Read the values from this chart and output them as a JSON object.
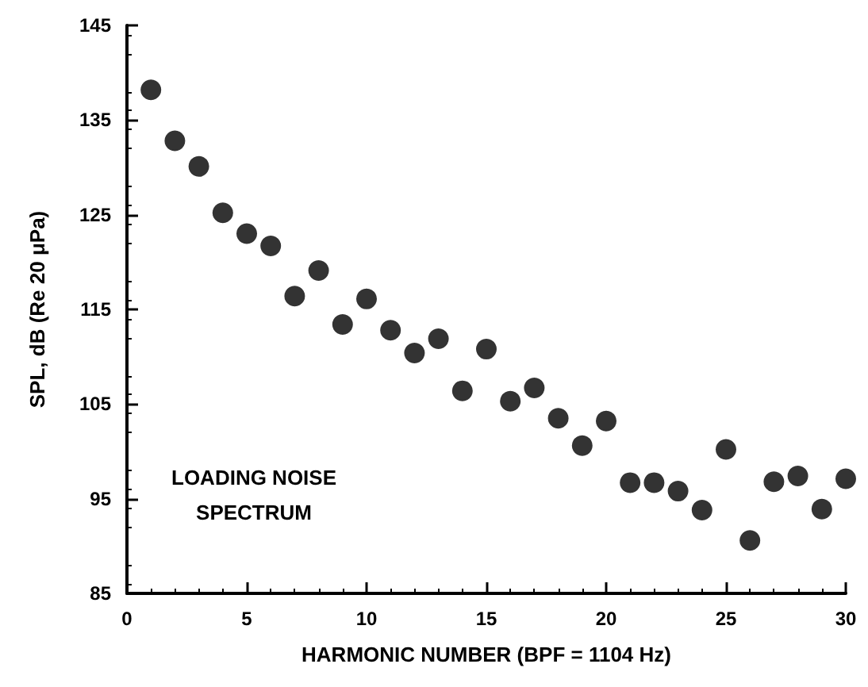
{
  "chart_data": {
    "type": "scatter",
    "xlabel": "HARMONIC NUMBER (BPF = 1104 Hz)",
    "ylabel": "SPL, dB (Re 20 μPa)",
    "annotations": [
      "LOADING NOISE\nSPECTRUM"
    ],
    "x": [
      1,
      2,
      3,
      4,
      5,
      6,
      7,
      8,
      9,
      10,
      11,
      12,
      13,
      14,
      15,
      16,
      17,
      18,
      19,
      20,
      21,
      22,
      23,
      24,
      25,
      26,
      27,
      28,
      29,
      30
    ],
    "series": [
      {
        "color": "#000000",
        "values": [
          138.2,
          132.8,
          130.1,
          125.2,
          123.0,
          121.7,
          116.4,
          119.1,
          113.4,
          116.1,
          112.8,
          110.4,
          111.9,
          106.4,
          110.8,
          105.3,
          106.7,
          103.5,
          100.6,
          103.2,
          96.7,
          96.7,
          95.8,
          93.8,
          100.2,
          90.6,
          96.8,
          97.4,
          93.9,
          97.1
        ]
      }
    ],
    "xlim": [
      0,
      30
    ],
    "xticks": [
      0,
      5,
      10,
      15,
      20,
      25,
      30
    ],
    "ylim": [
      85,
      145
    ],
    "yticks": [
      85,
      95,
      105,
      115,
      125,
      135,
      145
    ],
    "marker": "circle"
  }
}
